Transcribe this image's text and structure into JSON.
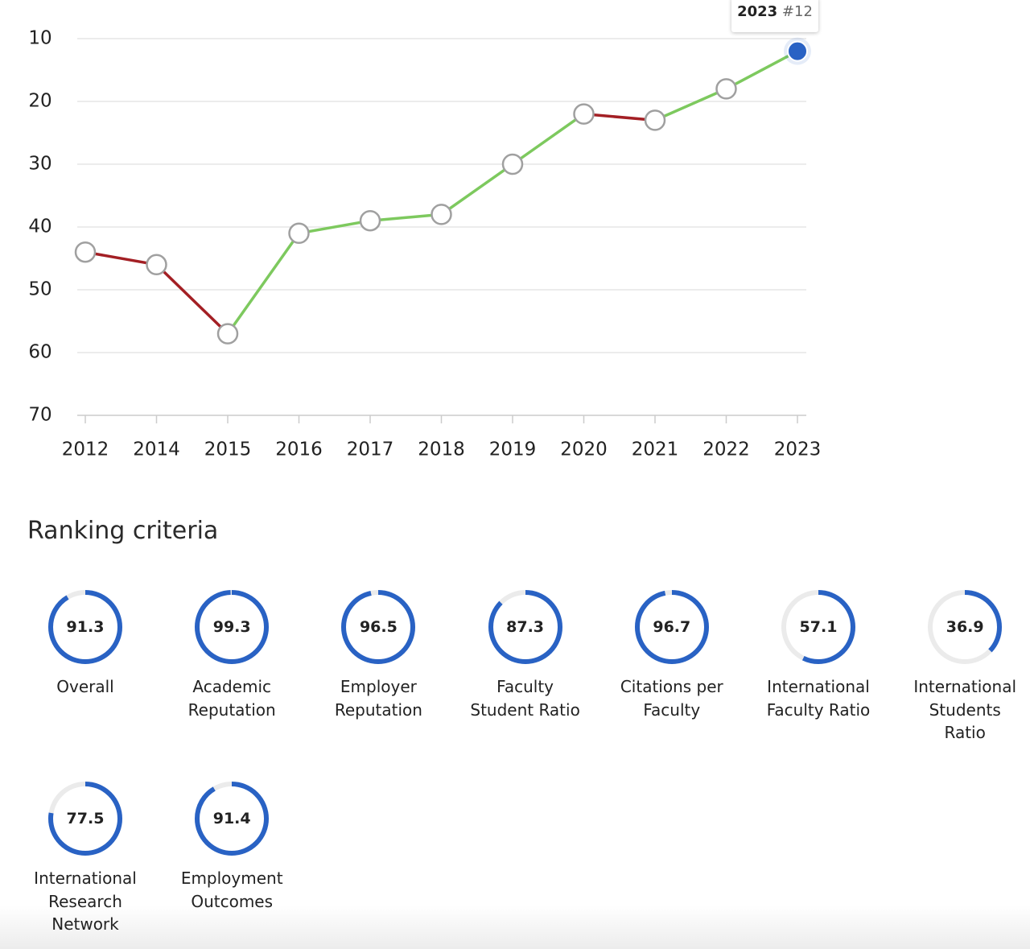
{
  "chart_data": {
    "type": "line",
    "categories": [
      "2012",
      "2014",
      "2015",
      "2016",
      "2017",
      "2018",
      "2019",
      "2020",
      "2021",
      "2022",
      "2023"
    ],
    "values": [
      44,
      46,
      57,
      41,
      39,
      38,
      30,
      22,
      23,
      18,
      12
    ],
    "value_labels": [
      null,
      null,
      null,
      null,
      null,
      null,
      null,
      null,
      null,
      null,
      "#12"
    ],
    "ylim": [
      70,
      10
    ],
    "yticks": [
      10,
      20,
      30,
      40,
      50,
      60,
      70
    ],
    "grid": true,
    "improve_color": "#7dc95e",
    "decline_color": "#a31f24",
    "highlight_color": "#2962c4"
  },
  "ranking_criteria": {
    "title": "Ranking criteria",
    "scale_max": 100,
    "ring_color": "#2962c4",
    "items": [
      {
        "label": "Overall",
        "value": 91.3
      },
      {
        "label": "Academic Reputation",
        "value": 99.3
      },
      {
        "label": "Employer Reputation",
        "value": 96.5
      },
      {
        "label": "Faculty Student Ratio",
        "value": 87.3
      },
      {
        "label": "Citations per Faculty",
        "value": 96.7
      },
      {
        "label": "International Faculty Ratio",
        "value": 57.1
      },
      {
        "label": "International Students Ratio",
        "value": 36.9
      },
      {
        "label": "International Research Network",
        "value": 77.5
      },
      {
        "label": "Employment Outcomes",
        "value": 91.4
      }
    ]
  }
}
